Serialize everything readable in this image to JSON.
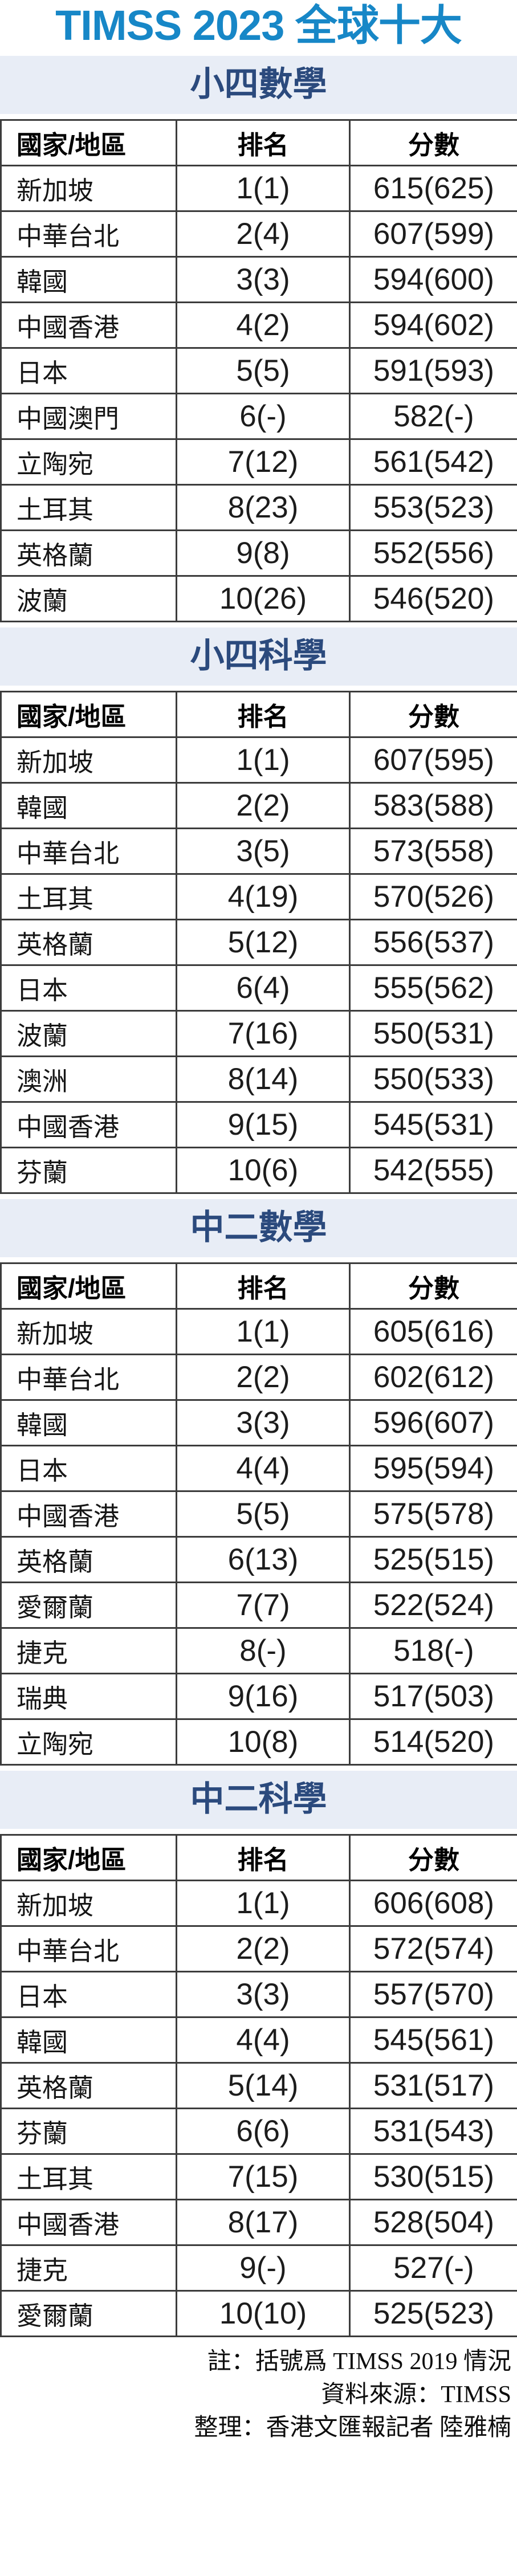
{
  "title": "TIMSS 2023 全球十大",
  "colors": {
    "title_blue": "#1787c7",
    "section_band_background": "#e8edf6",
    "section_band_text": "#2b4a7d",
    "table_border": "#3c3c3c"
  },
  "chart_data": [
    {
      "type": "table",
      "title": "小四數學",
      "columns": [
        "國家/地區",
        "排名",
        "分數"
      ],
      "rows": [
        [
          "新加坡",
          "1(1)",
          "615(625)"
        ],
        [
          "中華台北",
          "2(4)",
          "607(599)"
        ],
        [
          "韓國",
          "3(3)",
          "594(600)"
        ],
        [
          "中國香港",
          "4(2)",
          "594(602)"
        ],
        [
          "日本",
          "5(5)",
          "591(593)"
        ],
        [
          "中國澳門",
          "6(-)",
          "582(-)"
        ],
        [
          "立陶宛",
          "7(12)",
          "561(542)"
        ],
        [
          "土耳其",
          "8(23)",
          "553(523)"
        ],
        [
          "英格蘭",
          "9(8)",
          "552(556)"
        ],
        [
          "波蘭",
          "10(26)",
          "546(520)"
        ]
      ]
    },
    {
      "type": "table",
      "title": "小四科學",
      "columns": [
        "國家/地區",
        "排名",
        "分數"
      ],
      "rows": [
        [
          "新加坡",
          "1(1)",
          "607(595)"
        ],
        [
          "韓國",
          "2(2)",
          "583(588)"
        ],
        [
          "中華台北",
          "3(5)",
          "573(558)"
        ],
        [
          "土耳其",
          "4(19)",
          "570(526)"
        ],
        [
          "英格蘭",
          "5(12)",
          "556(537)"
        ],
        [
          "日本",
          "6(4)",
          "555(562)"
        ],
        [
          "波蘭",
          "7(16)",
          "550(531)"
        ],
        [
          "澳洲",
          "8(14)",
          "550(533)"
        ],
        [
          "中國香港",
          "9(15)",
          "545(531)"
        ],
        [
          "芬蘭",
          "10(6)",
          "542(555)"
        ]
      ]
    },
    {
      "type": "table",
      "title": "中二數學",
      "columns": [
        "國家/地區",
        "排名",
        "分數"
      ],
      "rows": [
        [
          "新加坡",
          "1(1)",
          "605(616)"
        ],
        [
          "中華台北",
          "2(2)",
          "602(612)"
        ],
        [
          "韓國",
          "3(3)",
          "596(607)"
        ],
        [
          "日本",
          "4(4)",
          "595(594)"
        ],
        [
          "中國香港",
          "5(5)",
          "575(578)"
        ],
        [
          "英格蘭",
          "6(13)",
          "525(515)"
        ],
        [
          "愛爾蘭",
          "7(7)",
          "522(524)"
        ],
        [
          "捷克",
          "8(-)",
          "518(-)"
        ],
        [
          "瑞典",
          "9(16)",
          "517(503)"
        ],
        [
          "立陶宛",
          "10(8)",
          "514(520)"
        ]
      ]
    },
    {
      "type": "table",
      "title": "中二科學",
      "columns": [
        "國家/地區",
        "排名",
        "分數"
      ],
      "rows": [
        [
          "新加坡",
          "1(1)",
          "606(608)"
        ],
        [
          "中華台北",
          "2(2)",
          "572(574)"
        ],
        [
          "日本",
          "3(3)",
          "557(570)"
        ],
        [
          "韓國",
          "4(4)",
          "545(561)"
        ],
        [
          "英格蘭",
          "5(14)",
          "531(517)"
        ],
        [
          "芬蘭",
          "6(6)",
          "531(543)"
        ],
        [
          "土耳其",
          "7(15)",
          "530(515)"
        ],
        [
          "中國香港",
          "8(17)",
          "528(504)"
        ],
        [
          "捷克",
          "9(-)",
          "527(-)"
        ],
        [
          "愛爾蘭",
          "10(10)",
          "525(523)"
        ]
      ]
    }
  ],
  "footnotes": [
    "註：括號爲 TIMSS 2019 情況",
    "資料來源：TIMSS",
    "整理：香港文匯報記者 陸雅楠"
  ]
}
